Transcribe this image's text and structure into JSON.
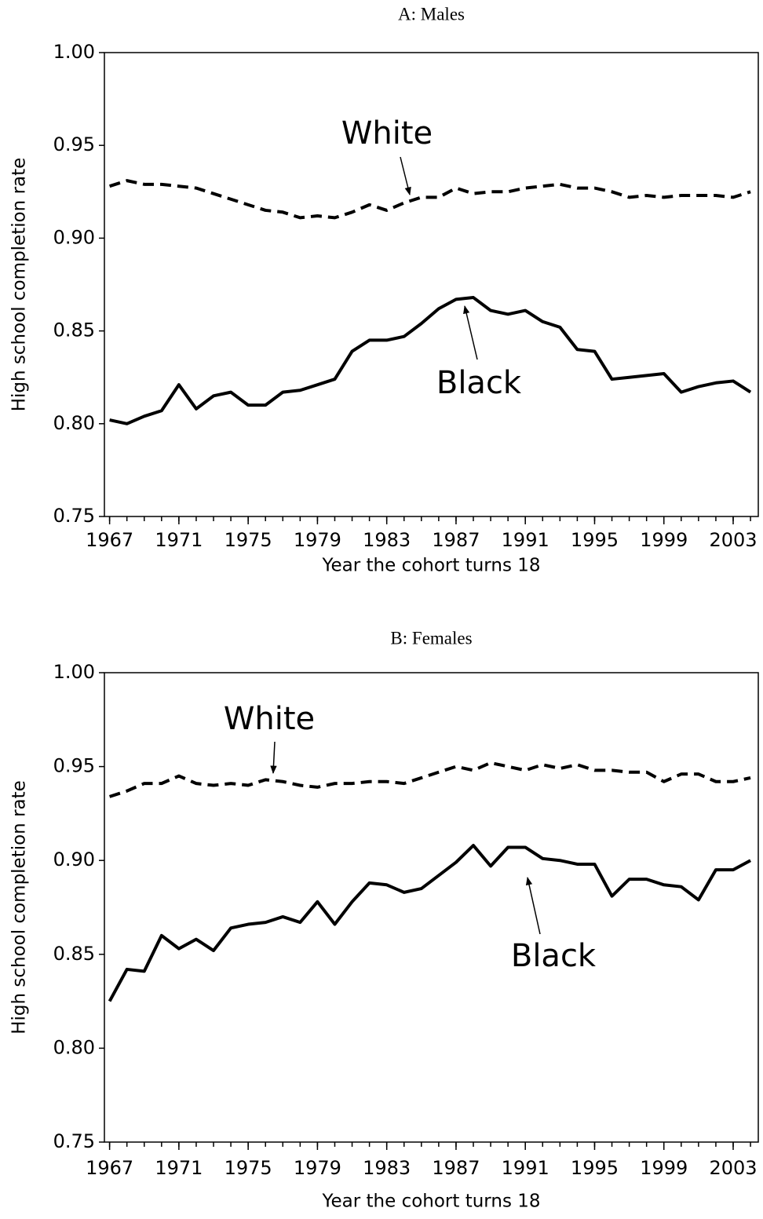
{
  "chart_data": [
    {
      "type": "line",
      "title": "A: Males",
      "xlabel": "Year the cohort turns 18",
      "ylabel": "High school completion rate",
      "x": [
        1967,
        1968,
        1969,
        1970,
        1971,
        1972,
        1973,
        1974,
        1975,
        1976,
        1977,
        1978,
        1979,
        1980,
        1981,
        1982,
        1983,
        1984,
        1985,
        1986,
        1987,
        1988,
        1989,
        1990,
        1991,
        1992,
        1993,
        1994,
        1995,
        1996,
        1997,
        1998,
        1999,
        2000,
        2001,
        2002,
        2003,
        2004
      ],
      "xlim": [
        1966.7,
        2004.45
      ],
      "xticks": [
        1967,
        1971,
        1975,
        1979,
        1983,
        1987,
        1991,
        1995,
        1999,
        2003
      ],
      "ylim": [
        0.75,
        1
      ],
      "yticks": [
        0.75,
        {
          "value": 0.8,
          "label": "0.80"
        },
        0.85,
        {
          "value": 0.9,
          "label": "0.90"
        },
        0.95,
        {
          "value": 1,
          "label": "1.00"
        }
      ],
      "series": [
        {
          "name": "White",
          "color": "#000000",
          "linestyle": "dashed",
          "values": [
            0.928,
            0.931,
            0.929,
            0.929,
            0.928,
            0.927,
            0.924,
            0.921,
            0.918,
            0.915,
            0.914,
            0.911,
            0.912,
            0.911,
            0.914,
            0.918,
            0.915,
            0.919,
            0.922,
            0.922,
            0.927,
            0.924,
            0.925,
            0.925,
            0.927,
            0.928,
            0.929,
            0.927,
            0.927,
            0.925,
            0.922,
            0.923,
            0.922,
            0.923,
            0.923,
            0.923,
            0.922,
            0.925
          ]
        },
        {
          "name": "Black",
          "color": "#000000",
          "linestyle": "solid",
          "values": [
            0.802,
            0.8,
            0.804,
            0.807,
            0.821,
            0.808,
            0.815,
            0.817,
            0.81,
            0.81,
            0.817,
            0.818,
            0.821,
            0.824,
            0.839,
            0.845,
            0.845,
            0.847,
            0.854,
            0.862,
            0.867,
            0.868,
            0.861,
            0.859,
            0.861,
            0.855,
            0.852,
            0.84,
            0.839,
            0.824,
            0.825,
            0.826,
            0.827,
            0.817,
            0.82,
            0.822,
            0.823,
            0.817
          ]
        }
      ]
    },
    {
      "type": "line",
      "title": "B: Females",
      "xlabel": "Year the cohort turns 18",
      "ylabel": "High school completion rate",
      "x": [
        1967,
        1968,
        1969,
        1970,
        1971,
        1972,
        1973,
        1974,
        1975,
        1976,
        1977,
        1978,
        1979,
        1980,
        1981,
        1982,
        1983,
        1984,
        1985,
        1986,
        1987,
        1988,
        1989,
        1990,
        1991,
        1992,
        1993,
        1994,
        1995,
        1996,
        1997,
        1998,
        1999,
        2000,
        2001,
        2002,
        2003,
        2004
      ],
      "xlim": [
        1966.7,
        2004.45
      ],
      "xticks": [
        1967,
        1971,
        1975,
        1979,
        1983,
        1987,
        1991,
        1995,
        1999,
        2003
      ],
      "ylim": [
        0.75,
        1
      ],
      "yticks": [
        0.75,
        {
          "value": 0.8,
          "label": "0.80"
        },
        0.85,
        {
          "value": 0.9,
          "label": "0.90"
        },
        0.95,
        {
          "value": 1,
          "label": "1.00"
        }
      ],
      "series": [
        {
          "name": "White",
          "color": "#000000",
          "linestyle": "dashed",
          "values": [
            0.934,
            0.937,
            0.941,
            0.941,
            0.945,
            0.941,
            0.94,
            0.941,
            0.94,
            0.943,
            0.942,
            0.94,
            0.939,
            0.941,
            0.941,
            0.942,
            0.942,
            0.941,
            0.944,
            0.947,
            0.95,
            0.948,
            0.952,
            0.95,
            0.948,
            0.951,
            0.949,
            0.951,
            0.948,
            0.948,
            0.947,
            0.947,
            0.942,
            0.946,
            0.946,
            0.942,
            0.942,
            0.944
          ]
        },
        {
          "name": "Black",
          "color": "#000000",
          "linestyle": "solid",
          "values": [
            0.825,
            0.842,
            0.841,
            0.86,
            0.853,
            0.858,
            0.852,
            0.864,
            0.866,
            0.867,
            0.87,
            0.867,
            0.878,
            0.866,
            0.878,
            0.888,
            0.887,
            0.883,
            0.885,
            0.892,
            0.899,
            0.908,
            0.897,
            0.907,
            0.907,
            0.901,
            0.9,
            0.898,
            0.898,
            0.881,
            0.89,
            0.89,
            0.887,
            0.886,
            0.879,
            0.895,
            0.895,
            0.9
          ]
        }
      ]
    }
  ]
}
